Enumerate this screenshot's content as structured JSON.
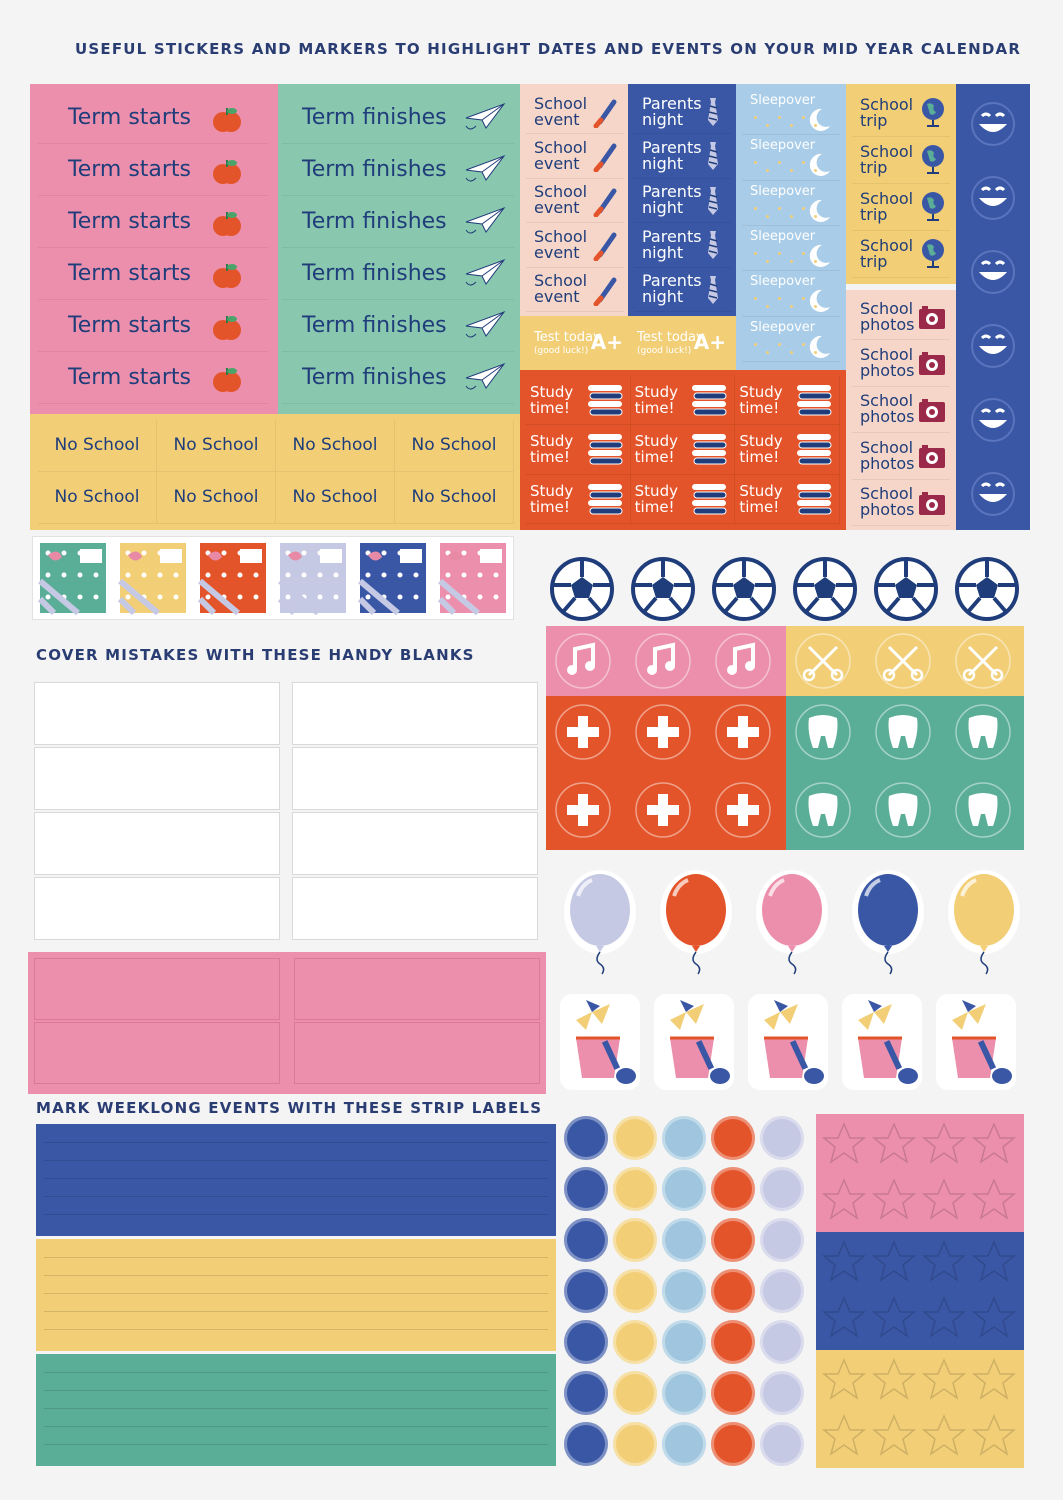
{
  "headings": {
    "top": "USEFUL STICKERS AND MARKERS TO HIGHLIGHT DATES AND EVENTS ON YOUR MID YEAR CALENDAR",
    "blanks": "COVER MISTAKES WITH THESE HANDY BLANKS",
    "strips": "MARK WEEKLONG EVENTS WITH THESE STRIP LABELS"
  },
  "stickers": {
    "term_starts": [
      "Term starts",
      "Term starts",
      "Term starts",
      "Term starts",
      "Term starts",
      "Term starts"
    ],
    "term_finishes": [
      "Term finishes",
      "Term finishes",
      "Term finishes",
      "Term finishes",
      "Term finishes",
      "Term finishes"
    ],
    "no_school": [
      "No School",
      "No School",
      "No School",
      "No School",
      "No School",
      "No School",
      "No School",
      "No School"
    ],
    "school_event": [
      "School\nevent",
      "School\nevent",
      "School\nevent",
      "School\nevent",
      "School\nevent"
    ],
    "parents_night": [
      "Parents\nnight",
      "Parents\nnight",
      "Parents\nnight",
      "Parents\nnight",
      "Parents\nnight"
    ],
    "sleepover": [
      "Sleepover",
      "Sleepover",
      "Sleepover",
      "Sleepover",
      "Sleepover",
      "Sleepover"
    ],
    "test_today": [
      "Test today",
      "Test today"
    ],
    "test_sub": [
      "(good luck!)",
      "(good luck!)"
    ],
    "grade": [
      "A+",
      "A+"
    ],
    "study_time": [
      "Study\ntime!",
      "Study\ntime!",
      "Study\ntime!",
      "Study\ntime!",
      "Study\ntime!",
      "Study\ntime!",
      "Study\ntime!",
      "Study\ntime!",
      "Study\ntime!"
    ],
    "school_trip": [
      "School\ntrip",
      "School\ntrip",
      "School\ntrip",
      "School\ntrip"
    ],
    "school_photos": [
      "School\nphotos",
      "School\nphotos",
      "School\nphotos",
      "School\nphotos",
      "School\nphotos"
    ]
  },
  "icons": {
    "term_starts": "apple-icon",
    "term_finishes": "paper-plane-icon",
    "school_event": "paintbrush-icon",
    "parents_night": "tie-icon",
    "sleepover": "moon-icon",
    "study_time": "books-icon",
    "school_trip": "globe-icon",
    "school_photos": "camera-icon",
    "smiley": "smiley-icon",
    "gift": "gift-icon",
    "soccer": "soccer-ball-icon",
    "music": "music-note-icon",
    "haircut": "scissors-comb-icon",
    "medical": "medical-cross-icon",
    "dental": "tooth-icon",
    "balloon": "balloon-icon",
    "beach": "beach-bucket-icon",
    "star": "star-icon"
  },
  "colors": {
    "navy": "#1f3d7a",
    "blue": "#3a57a6",
    "pink": "#ec8fac",
    "mint": "#89c7af",
    "yellow": "#f2cf77",
    "peach": "#f6d6c8",
    "orange": "#e4542a",
    "sky": "#a9cde8",
    "lavender": "#c6c9e4",
    "teal": "#5aae97",
    "lightblue": "#9fc6de",
    "gift_colors": [
      "#5aae97",
      "#f2cf77",
      "#e4542a",
      "#c6c9e4",
      "#3a57a6",
      "#ec8fac"
    ],
    "balloon_colors": [
      "#c6c9e4",
      "#e4542a",
      "#ec8fac",
      "#3a57a6",
      "#f2cf77"
    ],
    "dot_colors": [
      "#3a57a6",
      "#f2cf77",
      "#9fc6de",
      "#e4542a",
      "#c6c9e4"
    ],
    "strip_colors": [
      "#3a57a6",
      "#f2cf77",
      "#5aae97"
    ],
    "star_colors": [
      "#ec8fac",
      "#3a57a6",
      "#f2cf77"
    ]
  }
}
